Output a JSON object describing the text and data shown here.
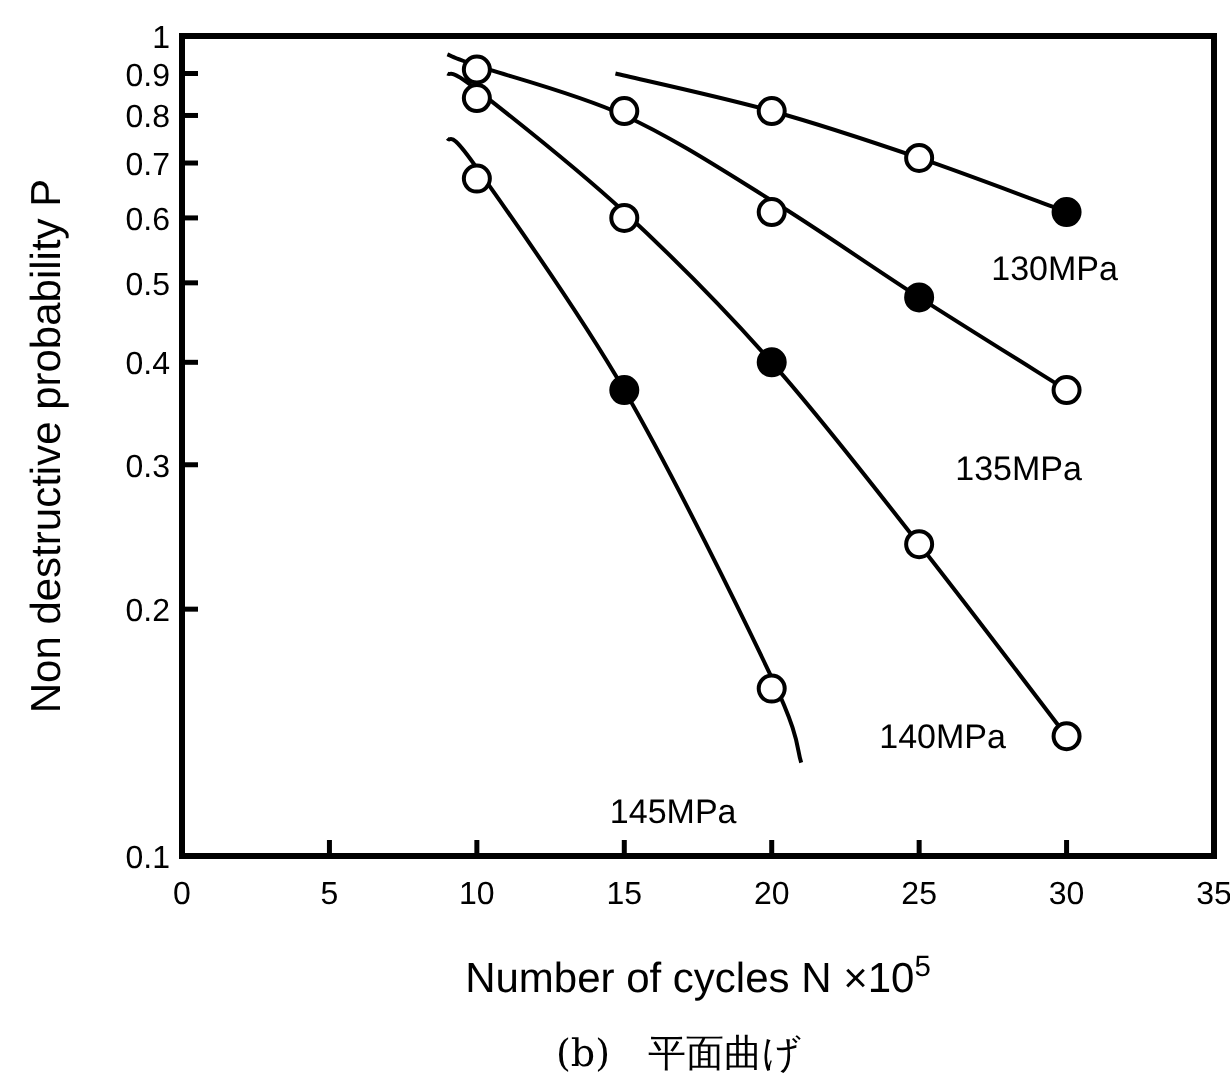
{
  "chart_data": {
    "type": "scatter",
    "xlabel": "Number of cycles  N ×10$^{5}$",
    "ylabel": "Non destructive probability P",
    "log": "y",
    "xlim": [
      0,
      35
    ],
    "xticks": [
      0,
      5,
      10,
      15,
      20,
      25,
      30,
      35
    ],
    "ylim": [
      0.1,
      1
    ],
    "yticks": [
      0.1,
      0.2,
      0.3,
      0.4,
      0.5,
      0.6,
      0.7,
      0.8,
      0.9,
      1
    ],
    "grid": false,
    "legend": false,
    "series": [
      {
        "type": "line",
        "name": "130MPa",
        "color": "#000000",
        "x": [
          14.7,
          20,
          25,
          30
        ],
        "values": [
          0.9,
          0.81,
          0.71,
          0.61
        ]
      },
      {
        "type": "line",
        "name": "135MPa",
        "color": "#000000",
        "x": [
          9,
          10,
          15,
          20,
          25,
          30
        ],
        "values": [
          0.95,
          0.92,
          0.8,
          0.63,
          0.48,
          0.37
        ]
      },
      {
        "type": "line",
        "name": "140MPa",
        "color": "#000000",
        "x": [
          9,
          10,
          15,
          20,
          25,
          30
        ],
        "values": [
          0.9,
          0.86,
          0.61,
          0.4,
          0.24,
          0.14
        ]
      },
      {
        "type": "line",
        "name": "145MPa",
        "color": "#000000",
        "x": [
          9,
          10,
          15,
          20,
          21
        ],
        "values": [
          0.75,
          0.69,
          0.37,
          0.165,
          0.13
        ]
      },
      {
        "marker": "circle",
        "color": "#000000",
        "x": [
          20,
          25,
          30
        ],
        "values": [
          0.81,
          0.71,
          0.61
        ],
        "colors": [
          "#ffffff",
          "#ffffff",
          "#000000"
        ]
      },
      {
        "marker": "circle",
        "color": "#000000",
        "x": [
          10,
          15,
          20,
          25,
          30
        ],
        "values": [
          0.91,
          0.81,
          0.61,
          0.48,
          0.37
        ],
        "colors": [
          "#ffffff",
          "#ffffff",
          "#ffffff",
          "#000000",
          "#ffffff"
        ]
      },
      {
        "marker": "circle",
        "color": "#000000",
        "x": [
          10,
          15,
          20,
          25,
          30
        ],
        "values": [
          0.84,
          0.6,
          0.4,
          0.24,
          0.14
        ],
        "colors": [
          "#ffffff",
          "#ffffff",
          "#000000",
          "#ffffff",
          "#ffffff"
        ]
      },
      {
        "marker": "circle",
        "color": "#000000",
        "x": [
          10,
          15,
          20
        ],
        "values": [
          0.67,
          0.37,
          0.16
        ],
        "colors": [
          "#ffffff",
          "#000000",
          "#ffffff"
        ]
      }
    ],
    "annotations": [
      "(b)　平面曲げ"
    ]
  }
}
